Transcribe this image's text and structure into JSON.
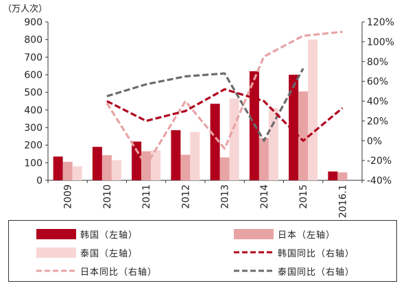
{
  "unit_label": "（万人次）",
  "colors": {
    "korea": "#b0001c",
    "japan": "#e8a3a4",
    "thailand": "#f8d5d5",
    "thailand_yoy": "#6b6b6b"
  },
  "chart_data": {
    "type": "bar",
    "categories": [
      "2009",
      "2010",
      "2011",
      "2012",
      "2013",
      "2014",
      "2015",
      "2016.1"
    ],
    "left_axis": {
      "ylim": [
        0,
        900
      ],
      "ticks": [
        "0",
        "100",
        "200",
        "300",
        "400",
        "500",
        "600",
        "700",
        "800",
        "900"
      ]
    },
    "right_axis": {
      "ylim": [
        -40,
        120
      ],
      "ticks": [
        "-40%",
        "-20%",
        "0%",
        "20%",
        "40%",
        "60%",
        "80%",
        "100%",
        "120%"
      ]
    },
    "bar_series": [
      {
        "name": "韩国（左轴）",
        "values": [
          135,
          190,
          220,
          285,
          435,
          620,
          600,
          50
        ]
      },
      {
        "name": "日本（左轴）",
        "values": [
          105,
          143,
          165,
          145,
          130,
          240,
          505,
          45
        ]
      },
      {
        "name": "泰国（左轴）",
        "values": [
          80,
          115,
          170,
          275,
          465,
          410,
          800,
          null
        ]
      }
    ],
    "line_series": [
      {
        "name": "韩国同比（右轴）",
        "axis": "right",
        "values": [
          null,
          40,
          20,
          30,
          52,
          40,
          0,
          33
        ]
      },
      {
        "name": "日本同比（右轴）",
        "axis": "right",
        "values": [
          null,
          38,
          -25,
          40,
          -8,
          85,
          106,
          110
        ]
      },
      {
        "name": "泰国同比（右轴）",
        "axis": "right",
        "values": [
          null,
          45,
          57,
          65,
          68,
          0,
          73,
          null
        ]
      }
    ],
    "legend": {
      "korea": "韩国（左轴）",
      "japan": "日本（左轴）",
      "thailand": "泰国（左轴）",
      "korea_yoy": "韩国同比（右轴）",
      "japan_yoy": "日本同比（右轴）",
      "thailand_yoy": "泰国同比（右轴）"
    }
  }
}
